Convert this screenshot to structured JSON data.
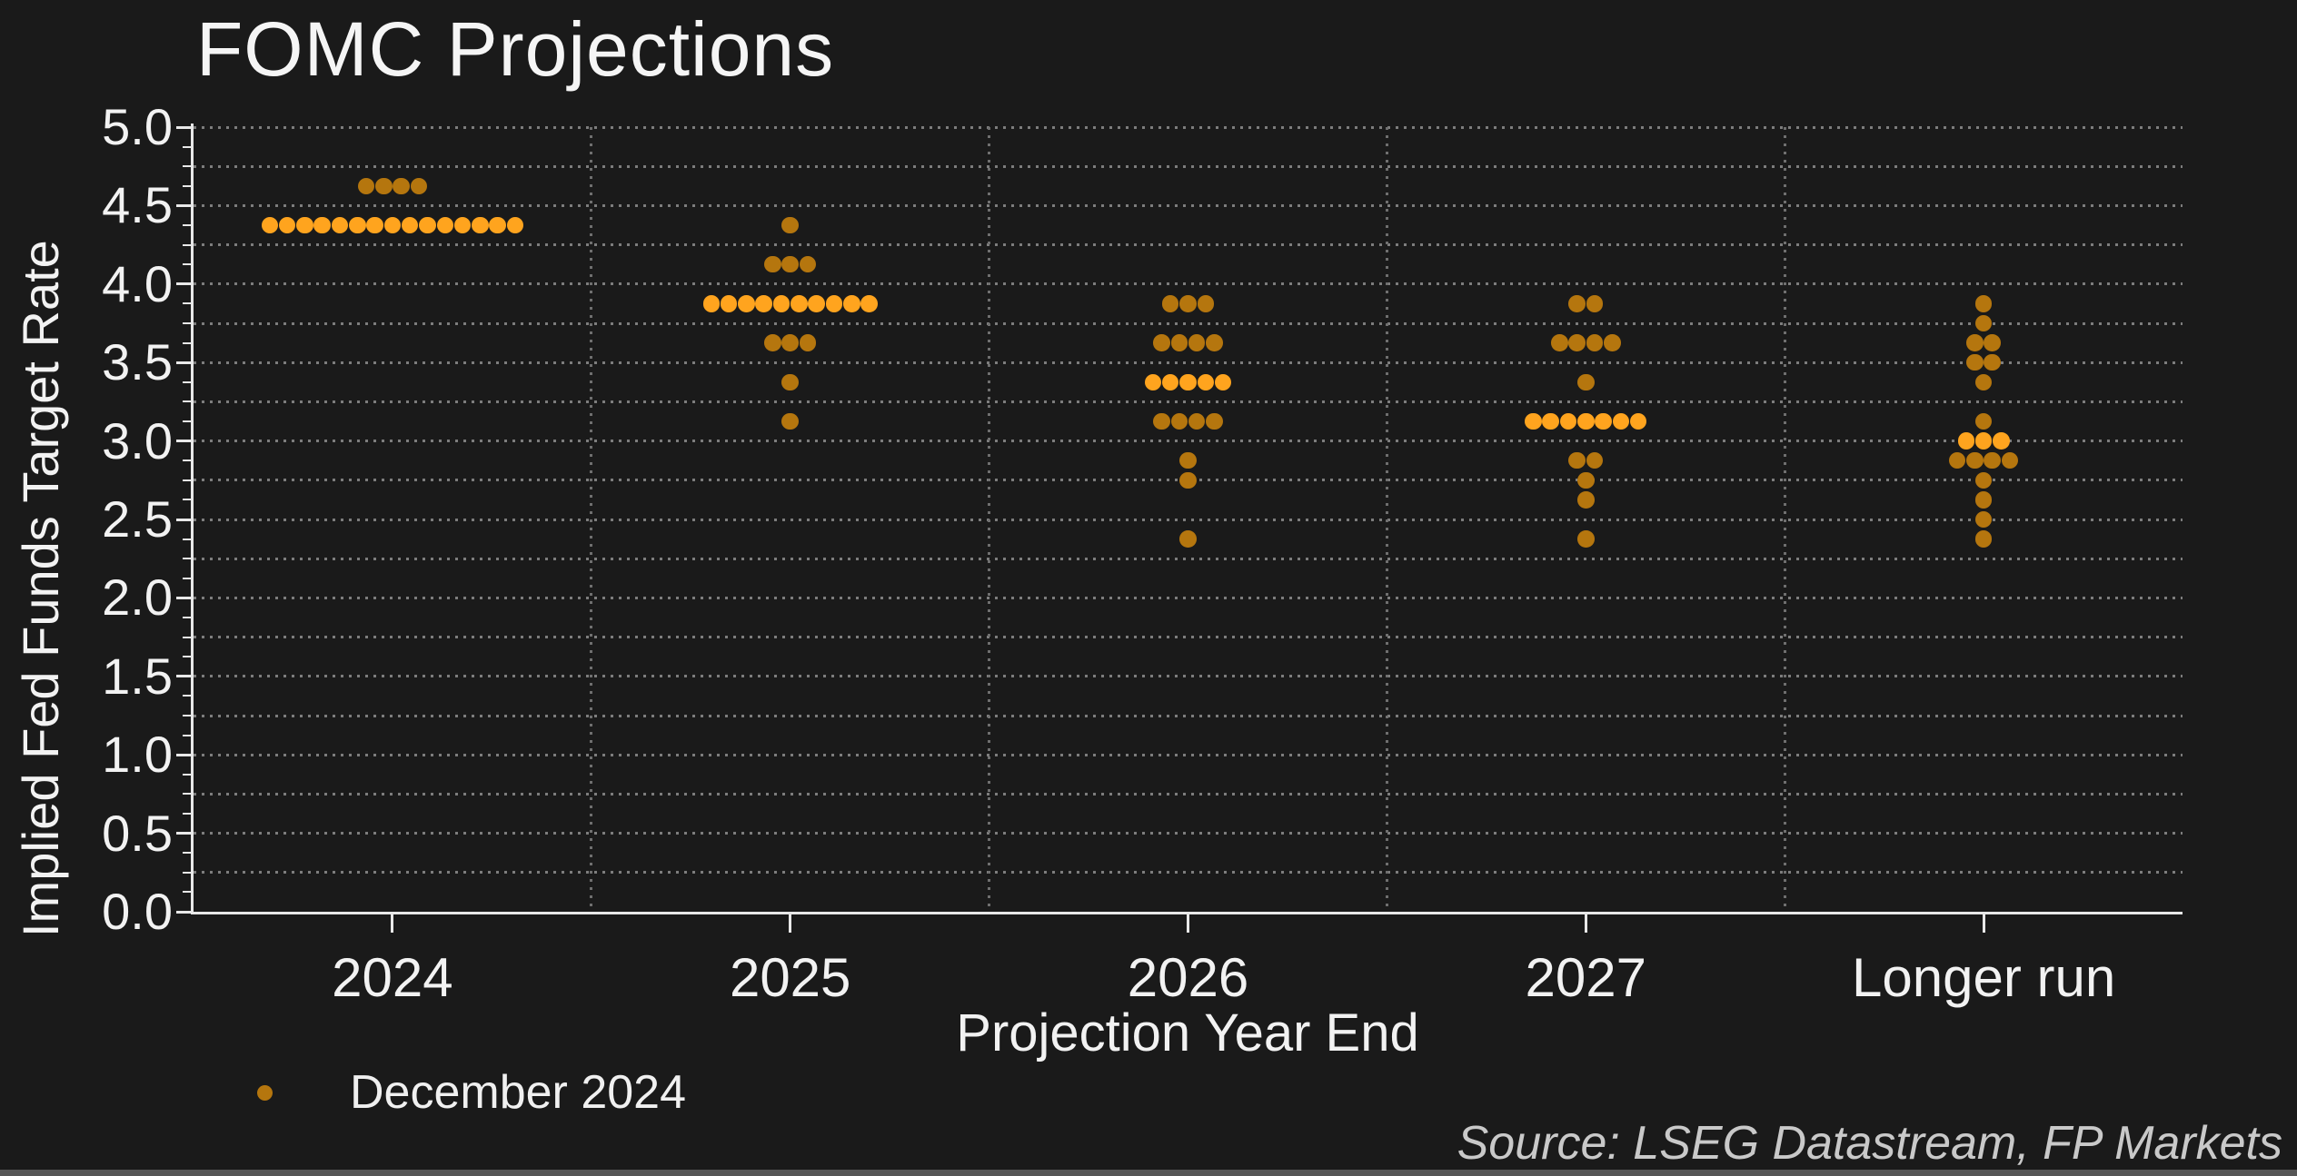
{
  "title": "FOMC Projections",
  "axis": {
    "ylabel": "Implied Fed Funds Target Rate",
    "xlabel": "Projection Year End"
  },
  "legend": {
    "label": "December 2024",
    "marker_color": "#b5760e"
  },
  "source_note": "Source: LSEG Datastream, FP Markets",
  "colors": {
    "background": "#1a1a1a",
    "dot": "#b5760e",
    "median_dot": "#ffa41e",
    "grid": "#7d7d7d",
    "axis": "#e8e8e8",
    "text": "#f2f2f2",
    "source_text": "#c9c9c9",
    "bottom_bar": "#565656"
  },
  "chart_data": {
    "type": "scatter",
    "subtype": "fomc-dot-plot",
    "title": "FOMC Projections",
    "xlabel": "Projection Year End",
    "ylabel": "Implied Fed Funds Target Rate",
    "unit": "percent",
    "categories": [
      "2024",
      "2025",
      "2026",
      "2027",
      "Longer run"
    ],
    "ylim": [
      0.0,
      5.0
    ],
    "ytick_interval": 0.5,
    "gridline_interval": 0.25,
    "minor_tick_interval": 0.125,
    "grid": "dotted horizontal lines every 0.25; dotted vertical lines at category boundaries",
    "legend_position": "bottom-left",
    "legend_entries": [
      "December 2024"
    ],
    "series": [
      {
        "name": "December 2024",
        "groups": [
          {
            "category": "2024",
            "rows": [
              {
                "rate": 4.625,
                "count": 4
              },
              {
                "rate": 4.375,
                "count": 15,
                "median": true
              }
            ]
          },
          {
            "category": "2025",
            "rows": [
              {
                "rate": 4.375,
                "count": 1
              },
              {
                "rate": 4.125,
                "count": 3
              },
              {
                "rate": 3.875,
                "count": 10,
                "median": true
              },
              {
                "rate": 3.625,
                "count": 3
              },
              {
                "rate": 3.375,
                "count": 1
              },
              {
                "rate": 3.125,
                "count": 1
              }
            ]
          },
          {
            "category": "2026",
            "rows": [
              {
                "rate": 3.875,
                "count": 3
              },
              {
                "rate": 3.625,
                "count": 4
              },
              {
                "rate": 3.375,
                "count": 5,
                "median": true
              },
              {
                "rate": 3.125,
                "count": 4
              },
              {
                "rate": 2.875,
                "count": 1
              },
              {
                "rate": 2.75,
                "count": 1
              },
              {
                "rate": 2.375,
                "count": 1
              }
            ]
          },
          {
            "category": "2027",
            "rows": [
              {
                "rate": 3.875,
                "count": 2
              },
              {
                "rate": 3.625,
                "count": 4
              },
              {
                "rate": 3.375,
                "count": 1
              },
              {
                "rate": 3.125,
                "count": 7,
                "median": true
              },
              {
                "rate": 2.875,
                "count": 2
              },
              {
                "rate": 2.75,
                "count": 1
              },
              {
                "rate": 2.625,
                "count": 1
              },
              {
                "rate": 2.375,
                "count": 1
              }
            ]
          },
          {
            "category": "Longer run",
            "rows": [
              {
                "rate": 3.875,
                "count": 1
              },
              {
                "rate": 3.75,
                "count": 1
              },
              {
                "rate": 3.625,
                "count": 2
              },
              {
                "rate": 3.5,
                "count": 2
              },
              {
                "rate": 3.375,
                "count": 1
              },
              {
                "rate": 3.125,
                "count": 1
              },
              {
                "rate": 3.0,
                "count": 3,
                "median": true
              },
              {
                "rate": 2.875,
                "count": 4
              },
              {
                "rate": 2.75,
                "count": 1
              },
              {
                "rate": 2.625,
                "count": 1
              },
              {
                "rate": 2.5,
                "count": 1
              },
              {
                "rate": 2.375,
                "count": 1
              }
            ]
          }
        ]
      }
    ]
  }
}
